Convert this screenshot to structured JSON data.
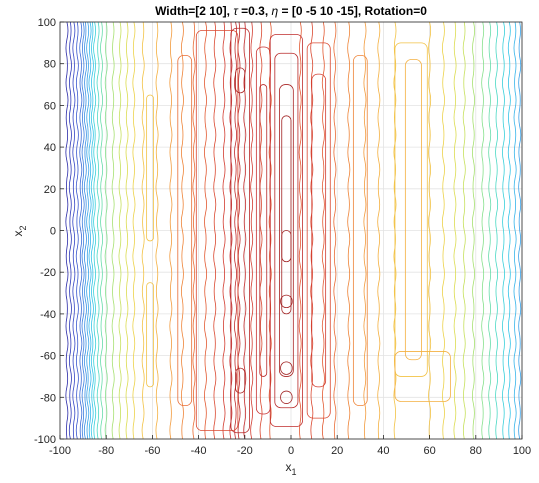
{
  "chart_data": {
    "type": "contour",
    "title_parts": {
      "a": "Width=[2  10], ",
      "tau_symbol": "τ",
      "b": " =0.3, ",
      "eta_symbol": "η",
      "c": " = [0  -5  10 -15], Rotation=0"
    },
    "xlabel": {
      "base": "x",
      "sub": "1"
    },
    "ylabel": {
      "base": "x",
      "sub": "2"
    },
    "xlim": [
      -100,
      100
    ],
    "ylim": [
      -100,
      100
    ],
    "xticks": [
      "-100",
      "-80",
      "-60",
      "-40",
      "-20",
      "0",
      "20",
      "40",
      "60",
      "80",
      "100"
    ],
    "yticks": [
      "-100",
      "-80",
      "-60",
      "-40",
      "-20",
      "0",
      "20",
      "40",
      "60",
      "80",
      "100"
    ],
    "grid": true,
    "colormap": "jet",
    "vertical_contour_lines": [
      {
        "x": -97,
        "color": "#2a2aa8"
      },
      {
        "x": -95.5,
        "color": "#2f39b8"
      },
      {
        "x": -94,
        "color": "#3446c4"
      },
      {
        "x": -92.5,
        "color": "#3a58cf"
      },
      {
        "x": -91,
        "color": "#3a6bd8"
      },
      {
        "x": -90,
        "color": "#3a7edf"
      },
      {
        "x": -89,
        "color": "#3a90e4"
      },
      {
        "x": -88,
        "color": "#3aa2e8"
      },
      {
        "x": -87,
        "color": "#36b4ea"
      },
      {
        "x": -86,
        "color": "#33c4e8"
      },
      {
        "x": -85,
        "color": "#38d0da"
      },
      {
        "x": -83.5,
        "color": "#4ad8c4"
      },
      {
        "x": -82,
        "color": "#66dcaa"
      },
      {
        "x": -80,
        "color": "#86e08c"
      },
      {
        "x": -77,
        "color": "#a6e070"
      },
      {
        "x": -74,
        "color": "#c6e05c"
      },
      {
        "x": -71,
        "color": "#dcdc50"
      },
      {
        "x": -68,
        "color": "#ecd24a"
      },
      {
        "x": -64,
        "color": "#f2c244"
      },
      {
        "x": -58,
        "color": "#f4b040"
      },
      {
        "x": -52,
        "color": "#f29a3c"
      },
      {
        "x": -47,
        "color": "#ee8438"
      },
      {
        "x": -42,
        "color": "#e86c34"
      },
      {
        "x": -37,
        "color": "#e25a32"
      },
      {
        "x": -33,
        "color": "#da4830"
      },
      {
        "x": -29,
        "color": "#d23c30"
      },
      {
        "x": -26,
        "color": "#c83030"
      },
      {
        "x": -24,
        "color": "#c02c2c"
      },
      {
        "x": -22.5,
        "color": "#b82828"
      },
      {
        "x": -20,
        "color": "#c83030"
      },
      {
        "x": -17,
        "color": "#d23c30"
      },
      {
        "x": -13,
        "color": "#da4830"
      },
      {
        "x": -9,
        "color": "#e25a32"
      },
      {
        "x": 4,
        "color": "#e25a32"
      },
      {
        "x": 9,
        "color": "#da4830"
      },
      {
        "x": 14,
        "color": "#e25a32"
      },
      {
        "x": 19,
        "color": "#e86c34"
      },
      {
        "x": 25,
        "color": "#ee8438"
      },
      {
        "x": 32,
        "color": "#f29a3c"
      },
      {
        "x": 38,
        "color": "#f4b040"
      },
      {
        "x": 45,
        "color": "#f2c244"
      },
      {
        "x": 60,
        "color": "#f2c244"
      },
      {
        "x": 66,
        "color": "#ecd24a"
      },
      {
        "x": 71,
        "color": "#dcdc50"
      },
      {
        "x": 75,
        "color": "#c6e05c"
      },
      {
        "x": 79,
        "color": "#a6e070"
      },
      {
        "x": 83,
        "color": "#86e08c"
      },
      {
        "x": 86,
        "color": "#66dcaa"
      },
      {
        "x": 89,
        "color": "#4ad8c4"
      },
      {
        "x": 92,
        "color": "#38d0da"
      },
      {
        "x": 94.5,
        "color": "#33c4e8"
      },
      {
        "x": 97,
        "color": "#36b4ea"
      },
      {
        "x": 99,
        "color": "#3aa2e8"
      }
    ],
    "closed_contours": [
      {
        "cx": -2,
        "cy": 0,
        "rx": 7,
        "ry": 94,
        "color": "#c02c2c"
      },
      {
        "cx": -2,
        "cy": 0,
        "rx": 5,
        "ry": 85,
        "color": "#b82828"
      },
      {
        "cx": -2,
        "cy": 0,
        "rx": 3,
        "ry": 70,
        "color": "#a82222"
      },
      {
        "cx": -2,
        "cy": 20,
        "rx": 2,
        "ry": 35,
        "color": "#a02020"
      },
      {
        "cx": -2,
        "cy": -20,
        "rx": 2,
        "ry": 20,
        "color": "#a02020"
      },
      {
        "cx": -2,
        "cy": -34,
        "rx": 2.5,
        "ry": 3,
        "color": "#a02020"
      },
      {
        "cx": -2,
        "cy": -66,
        "rx": 2.5,
        "ry": 3,
        "color": "#a02020"
      },
      {
        "cx": -2,
        "cy": -80,
        "rx": 2.5,
        "ry": 3,
        "color": "#a02020"
      },
      {
        "cx": -32,
        "cy": 0,
        "rx": 9,
        "ry": 96,
        "color": "#da4830"
      },
      {
        "cx": -22,
        "cy": 0,
        "rx": 4,
        "ry": 97,
        "color": "#b82828"
      },
      {
        "cx": -22,
        "cy": 72,
        "rx": 2,
        "ry": 6,
        "color": "#a82222"
      },
      {
        "cx": -22,
        "cy": -72,
        "rx": 2,
        "ry": 6,
        "color": "#a82222"
      },
      {
        "cx": -12,
        "cy": 0,
        "rx": 3,
        "ry": 88,
        "color": "#c83030"
      },
      {
        "cx": -12,
        "cy": 0,
        "rx": 1.5,
        "ry": 70,
        "color": "#b82828"
      },
      {
        "cx": 12,
        "cy": 0,
        "rx": 5,
        "ry": 90,
        "color": "#da4830"
      },
      {
        "cx": 12,
        "cy": 0,
        "rx": 3,
        "ry": 75,
        "color": "#d23c30"
      },
      {
        "cx": -46,
        "cy": 0,
        "rx": 3,
        "ry": 84,
        "color": "#e86c34"
      },
      {
        "cx": 30,
        "cy": 0,
        "rx": 3,
        "ry": 84,
        "color": "#ee8438"
      },
      {
        "cx": 52,
        "cy": 10,
        "rx": 7,
        "ry": 80,
        "color": "#f2c244"
      },
      {
        "cx": 53,
        "cy": 10,
        "rx": 3.5,
        "ry": 72,
        "color": "#f4b040"
      },
      {
        "cx": 57,
        "cy": -70,
        "rx": 12,
        "ry": 12,
        "color": "#f4b040"
      },
      {
        "cx": -61,
        "cy": 30,
        "rx": 1.5,
        "ry": 35,
        "color": "#f2c244"
      },
      {
        "cx": -61,
        "cy": -50,
        "rx": 1.5,
        "ry": 25,
        "color": "#f2c244"
      }
    ]
  }
}
